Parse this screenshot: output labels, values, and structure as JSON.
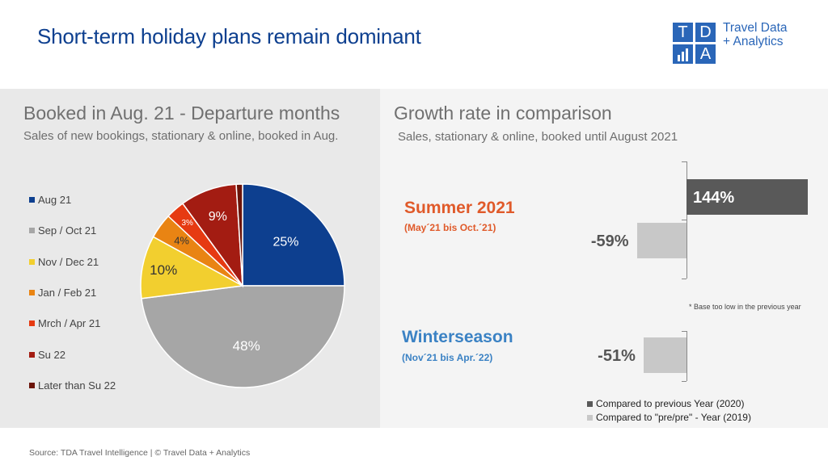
{
  "header": {
    "title": "Short-term holiday plans remain dominant",
    "logo": {
      "letters": [
        "T",
        "D",
        "",
        "A"
      ],
      "line1": "Travel Data",
      "line2": "+ Analytics"
    }
  },
  "left_section": {
    "title": "Booked in Aug. 21 - Departure months",
    "subtitle": "Sales of new bookings, stationary & online, booked in Aug."
  },
  "right_section": {
    "title": "Growth rate in comparison",
    "subtitle": "Sales, stationary & online, booked until August 2021",
    "summer": {
      "title": "Summer 2021",
      "range": "(May´21 bis Oct.´21)"
    },
    "winter": {
      "title": "Winterseason",
      "range": "(Nov´21 bis Apr.´22)"
    },
    "footnote": "* Base too low in the previous year",
    "legend": [
      "Compared to previous Year (2020)",
      "Compared to \"pre/pre\" - Year (2019)"
    ]
  },
  "footer": {
    "text": "Source: TDA Travel Intelligence   |   © Travel Data + Analytics"
  },
  "colors": {
    "navy": "#0d3f8f",
    "dark_bar": "#595959",
    "light_bar": "#c8c8c8",
    "summer": "#e05a2a",
    "winter": "#3b82c4",
    "logo_blue": "#2a66b8"
  },
  "chart_data": [
    {
      "type": "pie",
      "labels": [
        "Aug 21",
        "Sep / Oct 21",
        "Nov / Dec 21",
        "Jan / Feb 21",
        "Mrch / Apr 21",
        "Su 22",
        "Later than Su 22"
      ],
      "values": [
        25,
        48,
        10,
        4,
        3,
        9,
        1
      ],
      "value_labels": [
        "25%",
        "48%",
        "10%",
        "4%",
        "3%",
        "9%",
        ""
      ],
      "colors": [
        "#0d3f8f",
        "#a6a6a6",
        "#f2cf2f",
        "#e98413",
        "#e63a12",
        "#a31c12",
        "#6b1409"
      ],
      "legend_position": "left"
    },
    {
      "type": "bar",
      "orientation": "horizontal",
      "categories": [
        "Summer 2021",
        "Winterseason"
      ],
      "series": [
        {
          "name": "Compared to previous Year (2020)",
          "values": [
            144,
            null
          ]
        },
        {
          "name": "Compared to \"pre/pre\" - Year (2019)",
          "values": [
            -59,
            -51
          ]
        }
      ],
      "value_labels": {
        "Summer 2021": [
          "144%",
          "-59%"
        ],
        "Winterseason": [
          "",
          "-51%"
        ]
      },
      "legend_position": "bottom-right"
    }
  ]
}
